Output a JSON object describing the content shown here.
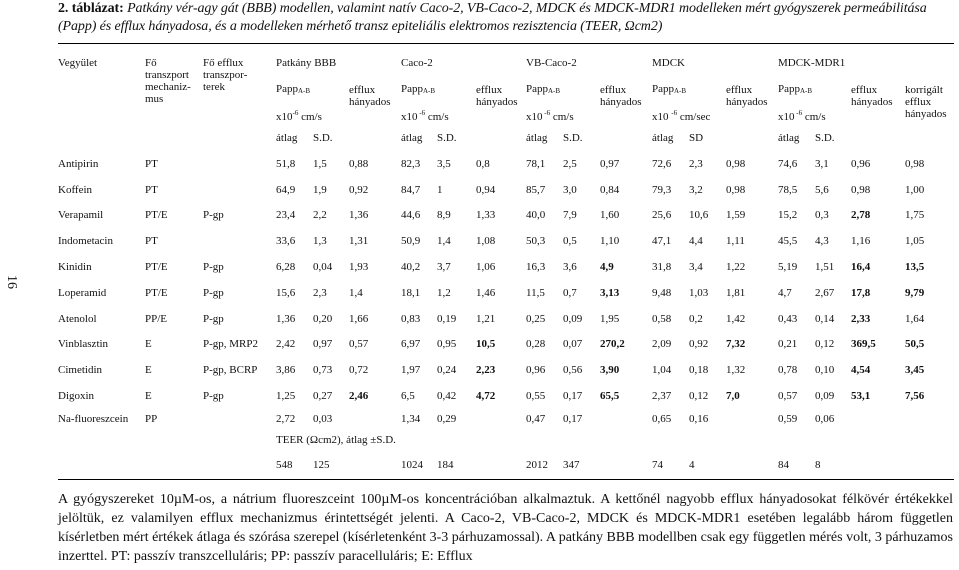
{
  "caption": {
    "lead": "2. táblázat:",
    "rest": " Patkány vér-agy gát (BBB) modellen, valamint natív Caco-2, VB-Caco-2, MDCK és MDCK-MDR1 modelleken mért gyógyszerek permeábilitása (Papp) és efflux hányadosa, és a modelleken mérhető transz epiteliális elektromos rezisztencia (TEER, Ωcm2)"
  },
  "page_number": "16",
  "headers": {
    "drug": "Vegyület",
    "mechanism": [
      "Fő",
      "transzport",
      "mechaniz-",
      "mus"
    ],
    "transporter": [
      "Fő efflux",
      "transzpor-",
      "terek"
    ],
    "groups": [
      "Patkány BBB",
      "Caco-2",
      "VB-Caco-2",
      "MDCK",
      "MDCK-MDR1"
    ],
    "papp": "Papp",
    "papp_sub": "A-B",
    "x10": "x10",
    "exp": "-6",
    "unit": "cm/s",
    "unit_sec": "cm/sec",
    "efflux": [
      "efflux",
      "hányados"
    ],
    "corrected": [
      "korrigált",
      "efflux",
      "hányados"
    ],
    "avg": "átlag",
    "sd": "S.D.",
    "sd_mdck": "SD"
  },
  "rows": [
    {
      "name": "Antipirin",
      "mech": "PT",
      "tr": "",
      "v": [
        "51,8",
        "1,5",
        "0,88",
        "82,3",
        "3,5",
        "0,8",
        "78,1",
        "2,5",
        "0,97",
        "72,6",
        "2,3",
        "0,98",
        "74,6",
        "3,1",
        "0,96",
        "0,98"
      ],
      "bold": []
    },
    {
      "name": "Koffein",
      "mech": "PT",
      "tr": "",
      "v": [
        "64,9",
        "1,9",
        "0,92",
        "84,7",
        "1",
        "0,94",
        "85,7",
        "3,0",
        "0,84",
        "79,3",
        "3,2",
        "0,98",
        "78,5",
        "5,6",
        "0,98",
        "1,00"
      ],
      "bold": []
    },
    {
      "name": "Verapamil",
      "mech": "PT/E",
      "tr": "P-gp",
      "v": [
        "23,4",
        "2,2",
        "1,36",
        "44,6",
        "8,9",
        "1,33",
        "40,0",
        "7,9",
        "1,60",
        "25,6",
        "10,6",
        "1,59",
        "15,2",
        "0,3",
        "2,78",
        "1,75"
      ],
      "bold": [
        14
      ]
    },
    {
      "name": "Indometacin",
      "mech": "PT",
      "tr": "",
      "v": [
        "33,6",
        "1,3",
        "1,31",
        "50,9",
        "1,4",
        "1,08",
        "50,3",
        "0,5",
        "1,10",
        "47,1",
        "4,4",
        "1,11",
        "45,5",
        "4,3",
        "1,16",
        "1,05"
      ],
      "bold": []
    },
    {
      "name": "Kinidin",
      "mech": "PT/E",
      "tr": "P-gp",
      "v": [
        "6,28",
        "0,04",
        "1,93",
        "40,2",
        "3,7",
        "1,06",
        "16,3",
        "3,6",
        "4,9",
        "31,8",
        "3,4",
        "1,22",
        "5,19",
        "1,51",
        "16,4",
        "13,5"
      ],
      "bold": [
        8,
        14,
        15
      ]
    },
    {
      "name": "Loperamid",
      "mech": "PT/E",
      "tr": "P-gp",
      "v": [
        "15,6",
        "2,3",
        "1,4",
        "18,1",
        "1,2",
        "1,46",
        "11,5",
        "0,7",
        "3,13",
        "9,48",
        "1,03",
        "1,81",
        "4,7",
        "2,67",
        "17,8",
        "9,79"
      ],
      "bold": [
        8,
        14,
        15
      ]
    },
    {
      "name": "Atenolol",
      "mech": "PP/E",
      "tr": "P-gp",
      "v": [
        "1,36",
        "0,20",
        "1,66",
        "0,83",
        "0,19",
        "1,21",
        "0,25",
        "0,09",
        "1,95",
        "0,58",
        "0,2",
        "1,42",
        "0,43",
        "0,14",
        "2,33",
        "1,64"
      ],
      "bold": [
        14
      ]
    },
    {
      "name": "Vinblasztin",
      "mech": "E",
      "tr": "P-gp, MRP2",
      "v": [
        "2,42",
        "0,97",
        "0,57",
        "6,97",
        "0,95",
        "10,5",
        "0,28",
        "0,07",
        "270,2",
        "2,09",
        "0,92",
        "7,32",
        "0,21",
        "0,12",
        "369,5",
        "50,5"
      ],
      "bold": [
        5,
        8,
        11,
        14,
        15
      ]
    },
    {
      "name": "Cimetidin",
      "mech": "E",
      "tr": "P-gp, BCRP",
      "v": [
        "3,86",
        "0,73",
        "0,72",
        "1,97",
        "0,24",
        "2,23",
        "0,96",
        "0,56",
        "3,90",
        "1,04",
        "0,18",
        "1,32",
        "0,78",
        "0,10",
        "4,54",
        "3,45"
      ],
      "bold": [
        5,
        8,
        14,
        15
      ]
    },
    {
      "name": "Digoxin",
      "mech": "E",
      "tr": "P-gp",
      "v": [
        "1,25",
        "0,27",
        "2,46",
        "6,5",
        "0,42",
        "4,72",
        "0,55",
        "0,17",
        "65,5",
        "2,37",
        "0,12",
        "7,0",
        "0,57",
        "0,09",
        "53,1",
        "7,56"
      ],
      "bold": [
        2,
        5,
        8,
        11,
        14,
        15
      ]
    },
    {
      "name": "Na-fluoreszcein",
      "mech": "PP",
      "tr": "",
      "v": [
        "2,72",
        "0,03",
        "",
        "1,34",
        "0,29",
        "",
        "0,47",
        "0,17",
        "",
        "0,65",
        "0,16",
        "",
        "0,59",
        "0,06",
        "",
        ""
      ],
      "bold": []
    }
  ],
  "teer": {
    "label": "TEER (Ωcm2), átlag ±S.D.",
    "values": [
      "548",
      "125",
      "1024",
      "184",
      "2012",
      "347",
      "74",
      "4",
      "84",
      "8"
    ]
  },
  "notes": "A gyógyszereket 10µM-os, a nátrium fluoreszceint 100µM-os koncentrációban alkalmaztuk. A kettőnél nagyobb efflux hányadosokat félkövér értékekkel jelöltük, ez valamilyen efflux mechanizmus érintettségét jelenti. A Caco-2, VB-Caco-2, MDCK és MDCK-MDR1 esetében legalább három független kísérletben mért értékek átlaga és szórása szerepel (kísérletenként 3-3 párhuzamossal). A patkány BBB modellben csak egy független mérés volt, 3 párhuzamos inzerttel. PT: passzív transzcelluláris; PP: passzív paracelluláris; E: Efflux"
}
